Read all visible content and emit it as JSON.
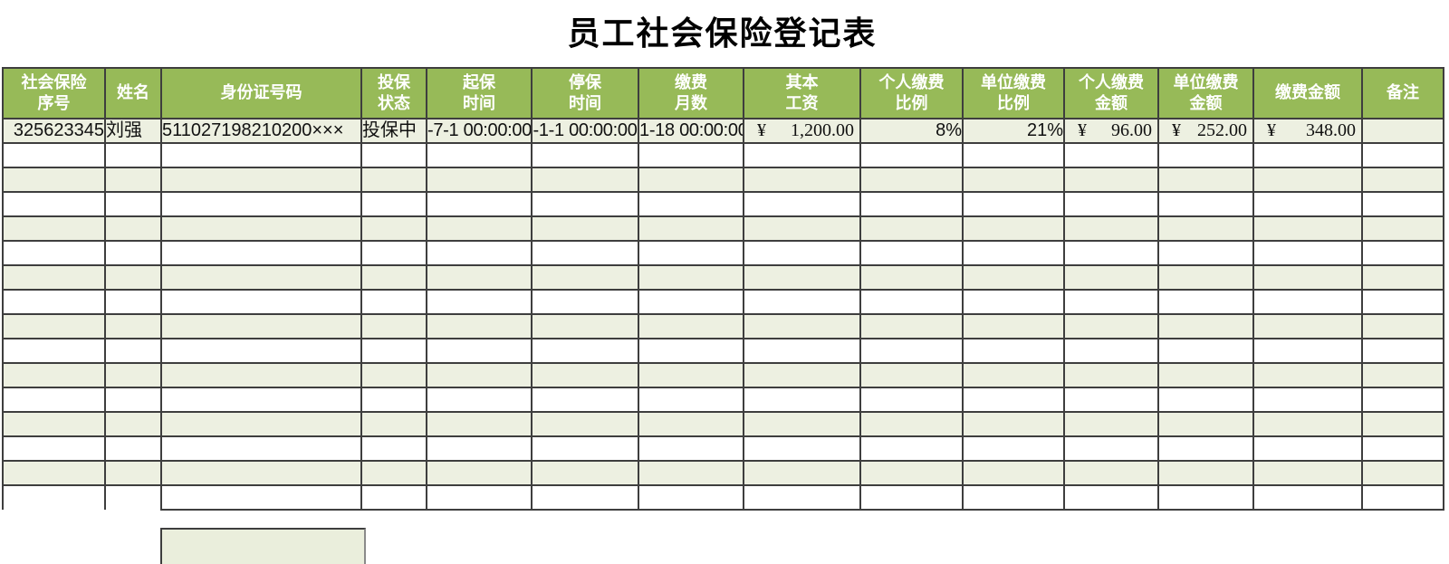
{
  "title": "员工社会保险登记表",
  "colors": {
    "header_bg": "#97ba58",
    "stripe_bg": "#edf0e1",
    "grid_line": "#3e3e3e",
    "detached_box_bg": "#eaeedc",
    "header_text": "#ffffff"
  },
  "table": {
    "headers": [
      {
        "label": "社会保险\n序号"
      },
      {
        "label": "姓名"
      },
      {
        "label": "身份证号码"
      },
      {
        "label": "投保\n状态"
      },
      {
        "label": "起保\n时间"
      },
      {
        "label": "停保\n时间"
      },
      {
        "label": "缴费\n月数"
      },
      {
        "label": "其本\n工资"
      },
      {
        "label": "个人缴费\n比例"
      },
      {
        "label": "单位缴费\n比例"
      },
      {
        "label": "个人缴费\n金额"
      },
      {
        "label": "单位缴费\n金额"
      },
      {
        "label": "缴费金额"
      },
      {
        "label": "备注"
      }
    ],
    "record": {
      "serial": "325623345",
      "name": "刘强",
      "id_number": "511027198210200×××",
      "status": "投保中",
      "start_time": "-7-1 00:00:00",
      "stop_time": "-1-1 00:00:00",
      "months": "1-18 00:00:00",
      "base_salary": {
        "symbol": "¥",
        "amount": "1,200.00"
      },
      "personal_rate": "8%",
      "company_rate": "21%",
      "personal_amount": {
        "symbol": "¥",
        "amount": "96.00"
      },
      "company_amount": {
        "symbol": "¥",
        "amount": "252.00"
      },
      "total_amount": {
        "symbol": "¥",
        "amount": "348.00"
      },
      "remark": ""
    },
    "empty_row_count": 15
  }
}
